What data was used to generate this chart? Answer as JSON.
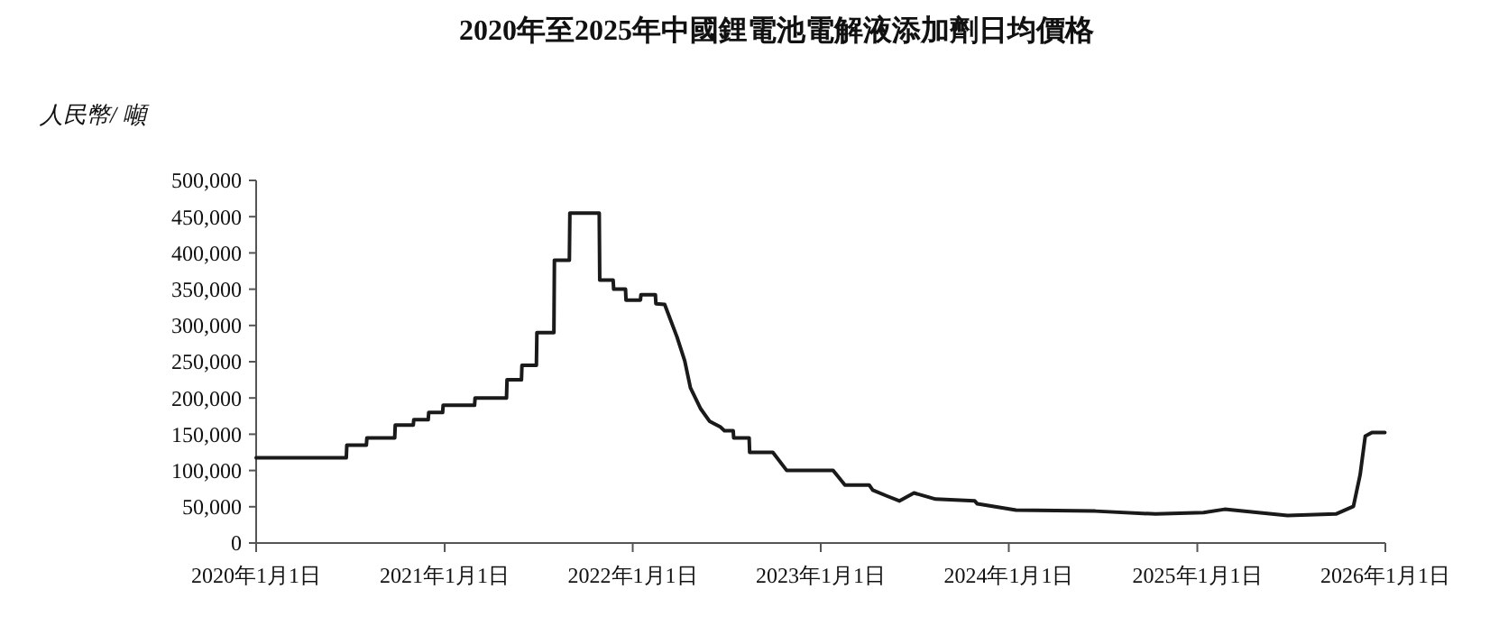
{
  "chart_data": {
    "type": "line",
    "title": "2020年至2025年中國鋰電池電解液添加劑日均價格",
    "ylabel": "人民幣/ 噸",
    "x": [
      "2020-01-01",
      "2020-06-24",
      "2020-06-25",
      "2020-08-02",
      "2020-08-03",
      "2020-09-26",
      "2020-09-27",
      "2020-11-01",
      "2020-11-02",
      "2020-11-30",
      "2020-12-01",
      "2020-12-28",
      "2020-12-29",
      "2021-02-28",
      "2021-03-01",
      "2021-05-01",
      "2021-05-02",
      "2021-05-30",
      "2021-05-31",
      "2021-06-28",
      "2021-06-29",
      "2021-08-01",
      "2021-08-02",
      "2021-08-31",
      "2021-09-01",
      "2021-10-28",
      "2021-10-29",
      "2021-11-24",
      "2021-11-25",
      "2021-12-18",
      "2021-12-19",
      "2022-01-16",
      "2022-01-17",
      "2022-02-14",
      "2022-02-15",
      "2022-03-04",
      "2022-03-28",
      "2022-04-12",
      "2022-04-23",
      "2022-05-13",
      "2022-05-30",
      "2022-06-20",
      "2022-06-28",
      "2022-07-15",
      "2022-07-16",
      "2022-08-15",
      "2022-08-16",
      "2022-09-30",
      "2022-10-27",
      "2023-01-25",
      "2023-02-17",
      "2023-04-05",
      "2023-04-12",
      "2023-05-10",
      "2023-06-03",
      "2023-07-01",
      "2023-08-12",
      "2023-10-27",
      "2023-11-01",
      "2024-01-15",
      "2024-06-17",
      "2024-10-12",
      "2025-01-13",
      "2025-02-23",
      "2025-06-25",
      "2025-09-27",
      "2025-10-31",
      "2025-11-13",
      "2025-11-23",
      "2025-12-06",
      "2025-12-31"
    ],
    "values": [
      117500,
      117500,
      135000,
      135000,
      145000,
      145000,
      162500,
      162500,
      170000,
      170000,
      180000,
      180000,
      190000,
      190000,
      200000,
      200000,
      225000,
      225000,
      245000,
      245000,
      290000,
      290000,
      390000,
      390000,
      455000,
      455000,
      362500,
      362500,
      350000,
      350000,
      335000,
      335000,
      342500,
      342500,
      330000,
      329000,
      284000,
      251000,
      214000,
      185000,
      168000,
      160000,
      155000,
      155000,
      145000,
      145000,
      125000,
      125000,
      100000,
      100000,
      80000,
      80000,
      73000,
      64700,
      58000,
      69000,
      60500,
      58000,
      54000,
      45500,
      44000,
      40000,
      42000,
      46500,
      38000,
      40000,
      50500,
      94000,
      147500,
      152500,
      152500
    ],
    "color": "#1a1a1a",
    "line_style": "solid",
    "xlim": [
      "2020-01-01",
      "2026-01-01"
    ],
    "xticks": [
      {
        "value": "2020-01-01",
        "label": "2020年1月1日"
      },
      {
        "value": "2021-01-01",
        "label": "2021年1月1日"
      },
      {
        "value": "2022-01-01",
        "label": "2022年1月1日"
      },
      {
        "value": "2023-01-01",
        "label": "2023年1月1日"
      },
      {
        "value": "2024-01-01",
        "label": "2024年1月1日"
      },
      {
        "value": "2025-01-01",
        "label": "2025年1月1日"
      },
      {
        "value": "2026-01-01",
        "label": "2026年1月1日"
      }
    ],
    "ylim": [
      0,
      500000
    ],
    "yticks": [
      0,
      {
        "value": 50000,
        "label": "50,000"
      },
      {
        "value": 100000,
        "label": "100,000"
      },
      {
        "value": 150000,
        "label": "150,000"
      },
      {
        "value": 200000,
        "label": "200,000"
      },
      {
        "value": 250000,
        "label": "250,000"
      },
      {
        "value": 300000,
        "label": "300,000"
      },
      {
        "value": 350000,
        "label": "350,000"
      },
      {
        "value": 400000,
        "label": "400,000"
      },
      {
        "value": 450000,
        "label": "450,000"
      },
      {
        "value": 500000,
        "label": "500,000"
      }
    ],
    "grid": false,
    "legend": false
  }
}
